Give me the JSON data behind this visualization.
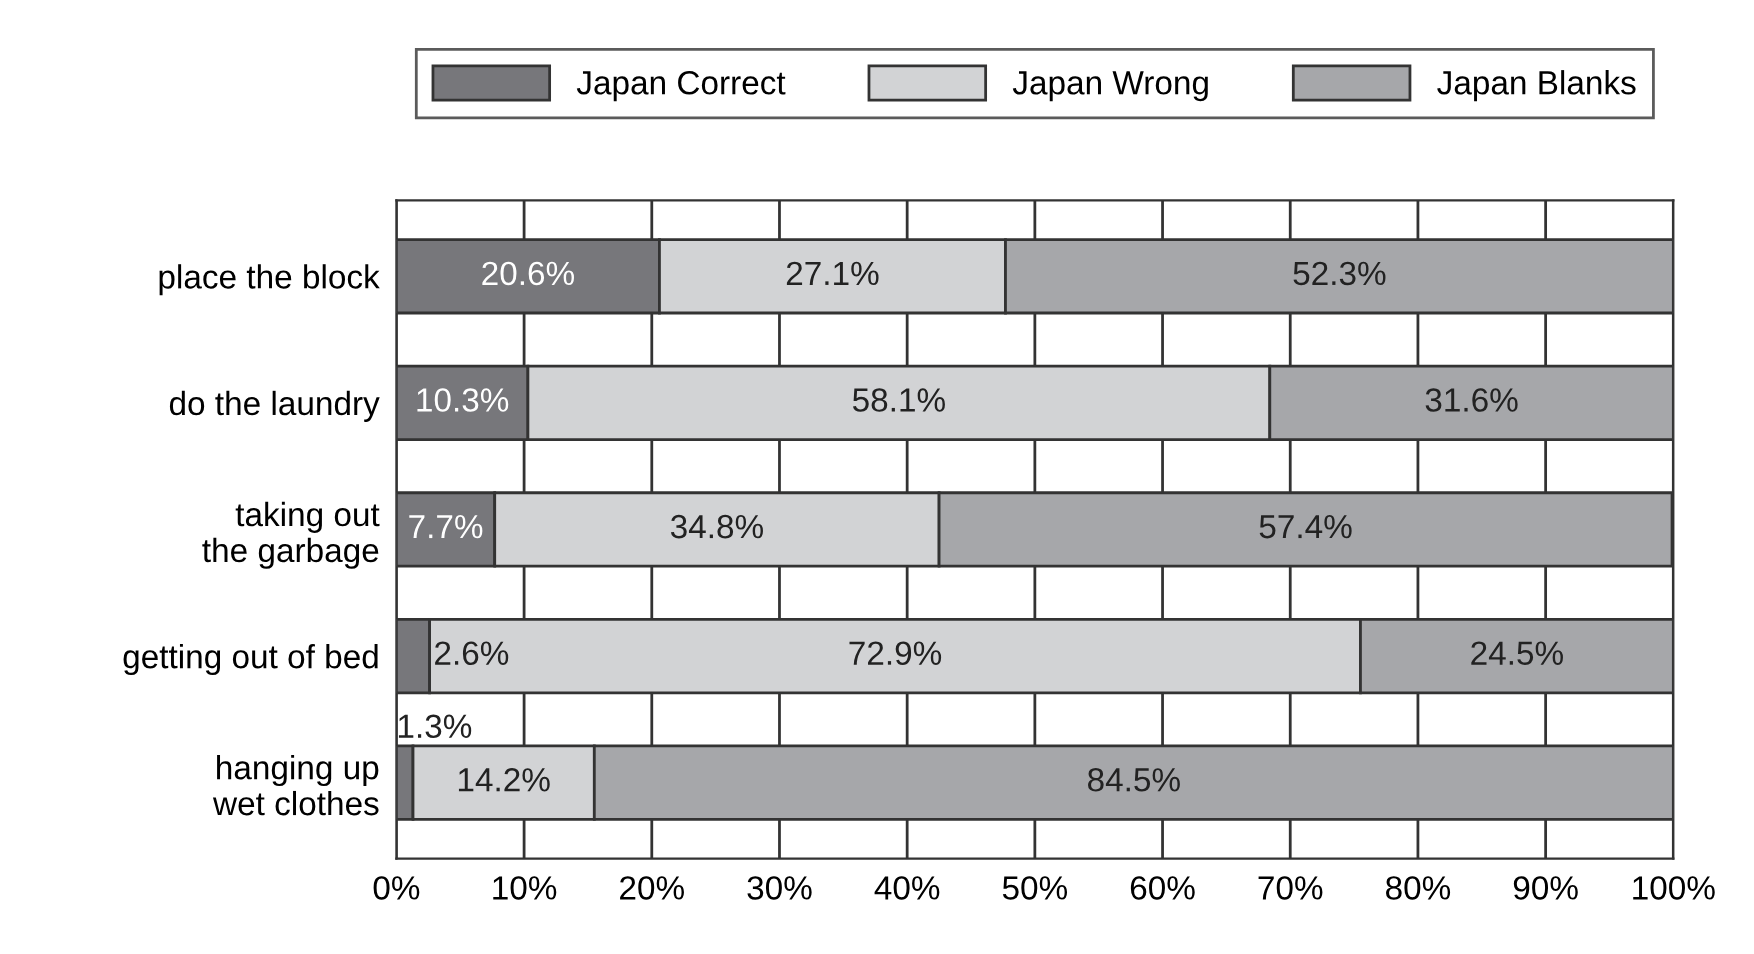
{
  "chart_data": {
    "type": "bar",
    "orientation": "horizontal",
    "stacked": true,
    "categories": [
      "place the block",
      "do the laundry",
      "taking out\nthe garbage",
      "getting out of bed",
      "hanging up\nwet clothes"
    ],
    "series": [
      {
        "name": "Japan Correct",
        "color": "#77777b",
        "values": [
          20.6,
          10.3,
          7.7,
          2.6,
          1.3
        ],
        "value_labels": [
          "20.6%",
          "10.3%",
          "7.7%",
          "2.6%",
          "1.3%"
        ]
      },
      {
        "name": "Japan Wrong",
        "color": "#d2d3d5",
        "values": [
          27.1,
          58.1,
          34.8,
          72.9,
          14.2
        ],
        "value_labels": [
          "27.1%",
          "58.1%",
          "34.8%",
          "72.9%",
          "14.2%"
        ]
      },
      {
        "name": "Japan Blanks",
        "color": "#a6a7aa",
        "values": [
          52.3,
          31.6,
          57.4,
          24.5,
          84.5
        ],
        "value_labels": [
          "52.3%",
          "31.6%",
          "57.4%",
          "24.5%",
          "84.5%"
        ]
      }
    ],
    "xlim": [
      0,
      100
    ],
    "xticks": [
      {
        "value": 0,
        "label": "0%"
      },
      {
        "value": 10,
        "label": "10%"
      },
      {
        "value": 20,
        "label": "20%"
      },
      {
        "value": 30,
        "label": "30%"
      },
      {
        "value": 40,
        "label": "40%"
      },
      {
        "value": 50,
        "label": "50%"
      },
      {
        "value": 60,
        "label": "60%"
      },
      {
        "value": 70,
        "label": "70%"
      },
      {
        "value": 80,
        "label": "80%"
      },
      {
        "value": 90,
        "label": "90%"
      },
      {
        "value": 100,
        "label": "100%"
      }
    ],
    "grid": "x",
    "legend": "top"
  }
}
